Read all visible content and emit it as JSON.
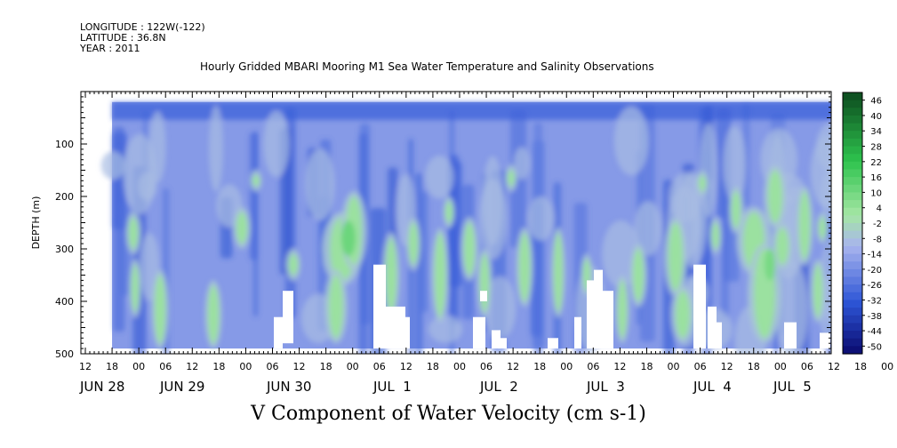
{
  "header": {
    "longitude": "LONGITUDE : 122W(-122)",
    "latitude": "LATITUDE : 36.8N",
    "year": "YEAR : 2011"
  },
  "chart_data": {
    "type": "heatmap",
    "title": "Hourly Gridded MBARI Mooring M1 Sea Water Temperature and Salinity Observations",
    "xlabel": "V Component of Water Velocity (cm s-1)",
    "ylabel": "DEPTH (m)",
    "ylim": [
      500,
      0
    ],
    "y_ticks": [
      "100",
      "200",
      "300",
      "400",
      "500"
    ],
    "x_hour_ticks": [
      "12",
      "18",
      "00",
      "06",
      "12",
      "18",
      "00",
      "06",
      "12",
      "18",
      "00",
      "06",
      "12",
      "18",
      "00",
      "06",
      "12",
      "18",
      "00",
      "06",
      "12",
      "18",
      "00",
      "06",
      "12",
      "18",
      "00",
      "06",
      "12",
      "18",
      "00",
      "06",
      "12",
      "18",
      "00",
      "06"
    ],
    "x_date_ticks": [
      "JUN 28",
      "JUN 29",
      "JUN 30",
      "JUL  1",
      "JUL  2",
      "JUL  3",
      "JUL  4",
      "JUL  5"
    ],
    "colorbar_ticks": [
      "46",
      "40",
      "34",
      "28",
      "22",
      "16",
      "10",
      "4",
      "-2",
      "-8",
      "-14",
      "-20",
      "-26",
      "-32",
      "-38",
      "-44",
      "-50"
    ],
    "colorbar_range": [
      -50,
      52
    ],
    "colors": {
      "strong_negative": "#0a0a6e",
      "negative": "#2d55d6",
      "weak_negative": "#a8b4ee",
      "weak_positive": "#a5e6a5",
      "positive": "#2ec44e",
      "strong_positive": "#0c4a1e"
    },
    "data_extent": {
      "time_start": "JUN 27 18:00",
      "time_end": "JUL 5 12:00",
      "depth_top_m": 20,
      "depth_bottom_m": 490
    }
  }
}
